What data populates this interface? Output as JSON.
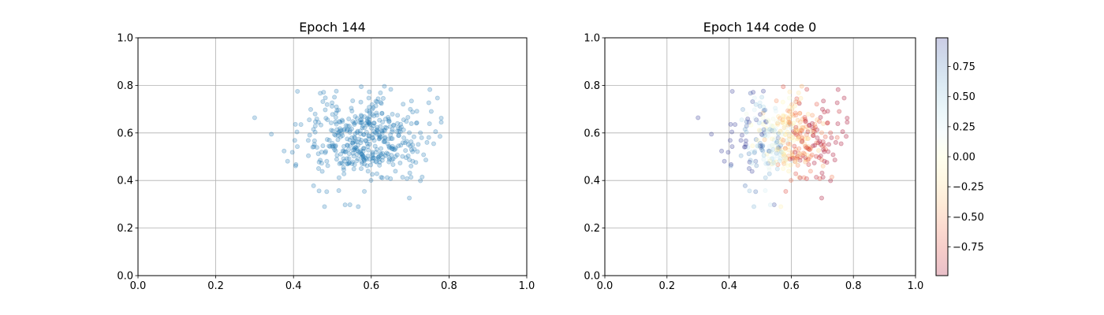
{
  "chart_data": [
    {
      "type": "scatter",
      "title": "Epoch 144",
      "xlim": [
        0,
        1
      ],
      "ylim": [
        0,
        1
      ],
      "xticks": [
        "0.0",
        "0.2",
        "0.4",
        "0.6",
        "0.8",
        "1.0"
      ],
      "yticks": [
        "0.0",
        "0.2",
        "0.4",
        "0.6",
        "0.8",
        "1.0"
      ],
      "grid": true,
      "point_color": "#1f77b4",
      "point_alpha": 0.25,
      "point_count": 450,
      "center": [
        0.585,
        0.575
      ],
      "spread": [
        0.085,
        0.085
      ]
    },
    {
      "type": "scatter",
      "title": "Epoch 144 code 0",
      "xlim": [
        0,
        1
      ],
      "ylim": [
        0,
        1
      ],
      "xticks": [
        "0.0",
        "0.2",
        "0.4",
        "0.6",
        "0.8",
        "1.0"
      ],
      "yticks": [
        "0.0",
        "0.2",
        "0.4",
        "0.6",
        "0.8",
        "1.0"
      ],
      "grid": true,
      "colormap": "RdYlBu",
      "point_alpha": 0.25,
      "colorbar": {
        "range": [
          -0.99,
          0.99
        ],
        "ticks": [
          "0.75",
          "0.50",
          "0.25",
          "0.00",
          "−0.25",
          "−0.50",
          "−0.75"
        ],
        "tick_values": [
          0.75,
          0.5,
          0.25,
          0,
          -0.25,
          -0.5,
          -0.75
        ]
      }
    }
  ]
}
